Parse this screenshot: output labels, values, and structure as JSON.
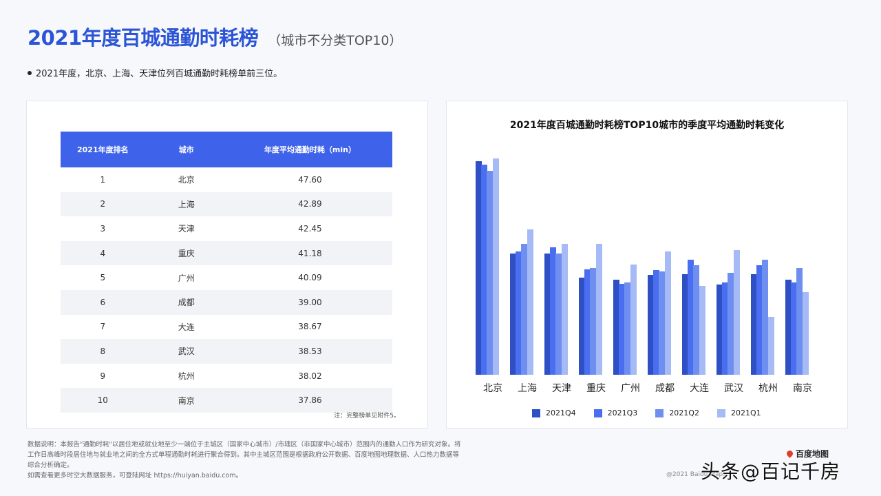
{
  "header": {
    "title": "2021年度百城通勤时耗榜",
    "subtitle": "（城市不分类TOP10）",
    "bullet": "2021年度，北京、上海、天津位列百城通勤时耗榜单前三位。"
  },
  "table": {
    "headers": [
      "2021年度排名",
      "城市",
      "年度平均通勤时耗（min）"
    ],
    "rows": [
      {
        "rank": "1",
        "city": "北京",
        "value": "47.60"
      },
      {
        "rank": "2",
        "city": "上海",
        "value": "42.89"
      },
      {
        "rank": "3",
        "city": "天津",
        "value": "42.45"
      },
      {
        "rank": "4",
        "city": "重庆",
        "value": "41.18"
      },
      {
        "rank": "5",
        "city": "广州",
        "value": "40.09"
      },
      {
        "rank": "6",
        "city": "成都",
        "value": "39.00"
      },
      {
        "rank": "7",
        "city": "大连",
        "value": "38.67"
      },
      {
        "rank": "8",
        "city": "武汉",
        "value": "38.53"
      },
      {
        "rank": "9",
        "city": "杭州",
        "value": "38.02"
      },
      {
        "rank": "10",
        "city": "南京",
        "value": "37.86"
      }
    ],
    "note": "注：完整榜单见附件5。",
    "header_color": "#3e63ea"
  },
  "chart_data": {
    "type": "bar",
    "title": "2021年度百城通勤时耗榜TOP10城市的季度平均通勤时耗变化",
    "xlabel": "",
    "ylabel": "",
    "grid": false,
    "legend_position": "bottom",
    "categories": [
      "北京",
      "上海",
      "天津",
      "重庆",
      "广州",
      "成都",
      "大连",
      "武汉",
      "杭州",
      "南京"
    ],
    "series": [
      {
        "name": "2021Q4",
        "color": "#2f4fc4",
        "values": [
          47.8,
          40.1,
          40.1,
          38.1,
          37.9,
          38.3,
          38.4,
          37.5,
          38.4,
          37.9
        ]
      },
      {
        "name": "2021Q3",
        "color": "#4a6ef0",
        "values": [
          47.5,
          40.3,
          40.6,
          38.8,
          37.6,
          38.7,
          39.6,
          37.7,
          39.1,
          37.7
        ]
      },
      {
        "name": "2021Q2",
        "color": "#6f8ff0",
        "values": [
          47.0,
          40.9,
          40.1,
          38.9,
          37.7,
          38.6,
          39.1,
          38.5,
          39.6,
          38.9
        ]
      },
      {
        "name": "2021Q1",
        "color": "#a6baf5",
        "values": [
          48.0,
          42.1,
          40.9,
          40.9,
          39.2,
          40.3,
          37.4,
          40.4,
          34.8,
          36.9
        ]
      }
    ],
    "axis_baseline_min": 30.0,
    "axis_top_min": 49.4,
    "note": "No y-axis shown; values estimated from bar heights (relative)."
  },
  "footer": {
    "lines": [
      "数据说明：本报告\"通勤时耗\"以居住地或就业地至少一端位于主城区（国家中心城市）/市辖区（非国家中心城市）范围内的通勤人口作为研究对象。将",
      "工作日高峰时段居住地与就业地之间的全方式单程通勤时耗进行聚合得到。其中主城区范围是根据政府公开数据、百度地图地理数据、人口热力数据等",
      "综合分析确定。",
      "如需查看更多时空大数据服务，可登陆网址 https://huiyan.baidu.com。"
    ],
    "brand": "百度地图",
    "copyright": "@2021 Baidu Maps",
    "watermark": "头条@百记千房"
  }
}
